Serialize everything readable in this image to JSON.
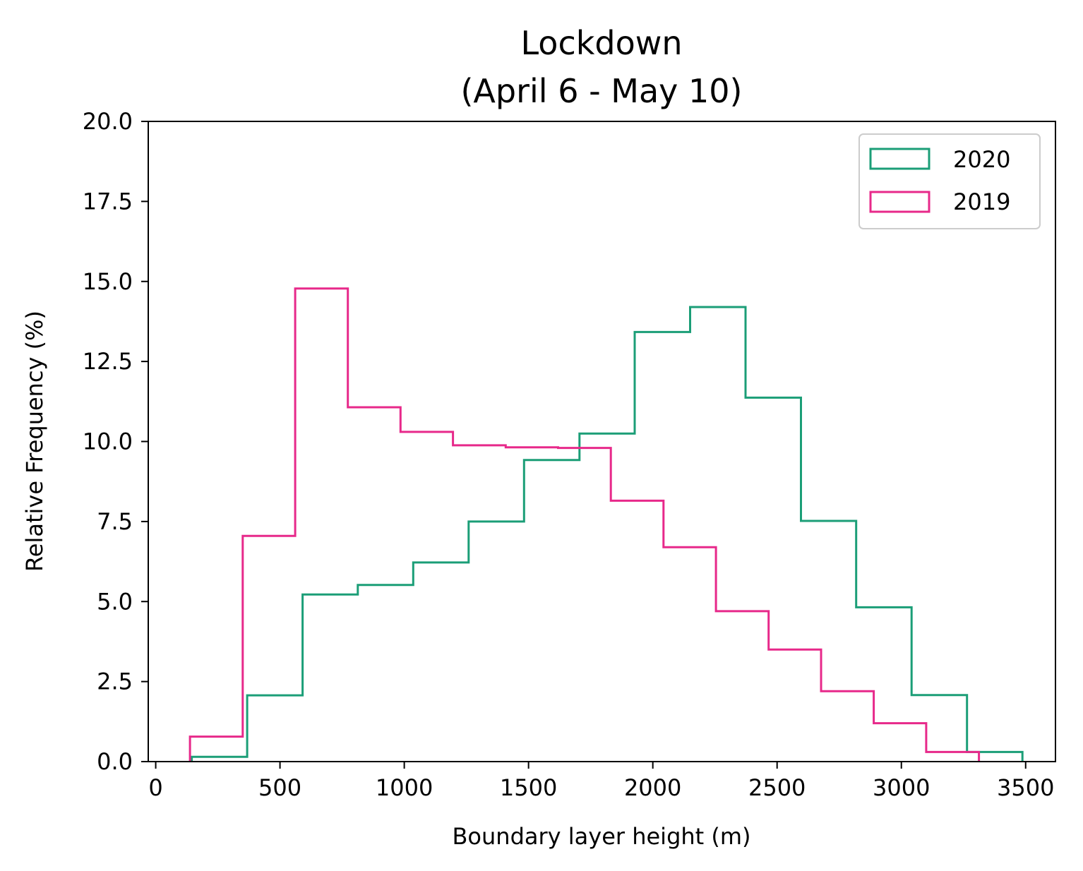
{
  "chart_data": {
    "type": "histogram",
    "title": [
      "Lockdown",
      "(April 6 - May 10)"
    ],
    "xlabel": "Boundary layer height (m)",
    "ylabel": "Relative Frequency (%)",
    "xlim": [
      -30,
      3620
    ],
    "ylim": [
      0,
      20
    ],
    "xticks": [
      0,
      500,
      1000,
      1500,
      2000,
      2500,
      3000,
      3500
    ],
    "xtick_labels": [
      "0",
      "500",
      "1000",
      "1500",
      "2000",
      "2500",
      "3000",
      "3500"
    ],
    "yticks": [
      0,
      2.5,
      5,
      7.5,
      10,
      12.5,
      15,
      17.5,
      20
    ],
    "ytick_labels": [
      "0.0",
      "2.5",
      "5.0",
      "7.5",
      "10.0",
      "12.5",
      "15.0",
      "17.5",
      "20.0"
    ],
    "grid": false,
    "legend_position": "top-right",
    "series": [
      {
        "name": "2020",
        "color": "#1b9e77",
        "bin_edges": [
          145,
          368,
          591,
          813,
          1036,
          1259,
          1482,
          1705,
          1927,
          2150,
          2373,
          2596,
          2818,
          3041,
          3264,
          3487
        ],
        "values": [
          0.15,
          2.07,
          5.22,
          5.52,
          6.22,
          7.5,
          9.42,
          10.25,
          13.42,
          14.2,
          11.37,
          7.52,
          4.82,
          2.08,
          0.3
        ]
      },
      {
        "name": "2019",
        "color": "#e7298a",
        "bin_edges": [
          138,
          350,
          561,
          773,
          985,
          1196,
          1408,
          1619,
          1831,
          2043,
          2254,
          2466,
          2677,
          2889,
          3100,
          3312
        ],
        "values": [
          0.78,
          7.05,
          14.78,
          11.07,
          10.3,
          9.88,
          9.82,
          9.8,
          8.15,
          6.7,
          4.7,
          3.5,
          2.2,
          1.2,
          0.3
        ]
      }
    ]
  }
}
